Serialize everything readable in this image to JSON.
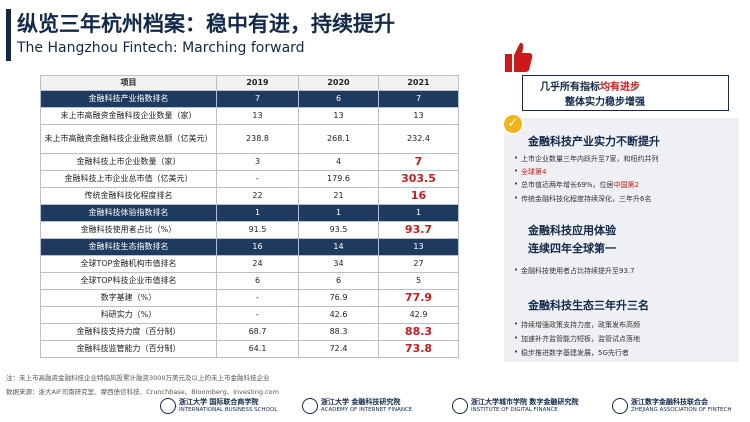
{
  "title": {
    "cn": "纵览三年杭州档案：稳中有进，持续提升",
    "en": "The Hangzhou Fintech: Marching forward"
  },
  "table": {
    "headers": [
      "项目",
      "2019",
      "2020",
      "2021"
    ],
    "rows": [
      {
        "type": "section",
        "cells": [
          "金融科技产业指数排名",
          "7",
          "6",
          "7"
        ]
      },
      {
        "type": "data",
        "cells": [
          "未上市高融资金融科技企业数量（家）",
          "13",
          "13",
          "13"
        ]
      },
      {
        "type": "tall",
        "cells": [
          "未上市高融资金融科技企业融资总额（亿美元）",
          "238.8",
          "268.1",
          "232.4"
        ]
      },
      {
        "type": "data",
        "hl": true,
        "cells": [
          "金融科技上市企业数量（家）",
          "3",
          "4",
          "7"
        ]
      },
      {
        "type": "data",
        "hl": true,
        "cells": [
          "金融科技上市企业总市值（亿美元）",
          "-",
          "179.6",
          "303.5"
        ]
      },
      {
        "type": "data",
        "hl": true,
        "cells": [
          "传统金融科技化程度排名",
          "22",
          "21",
          "16"
        ]
      },
      {
        "type": "section",
        "cells": [
          "金融科技体验指数排名",
          "1",
          "1",
          "1"
        ]
      },
      {
        "type": "data",
        "hl": true,
        "cells": [
          "金融科技使用者占比（%）",
          "91.5",
          "93.5",
          "93.7"
        ]
      },
      {
        "type": "section",
        "cells": [
          "金融科技生态指数排名",
          "16",
          "14",
          "13"
        ]
      },
      {
        "type": "data",
        "cells": [
          "全球TOP金融机构市值排名",
          "24",
          "34",
          "27"
        ]
      },
      {
        "type": "data",
        "cells": [
          "全球TOP科技企业市值排名",
          "6",
          "6",
          "5"
        ]
      },
      {
        "type": "data",
        "hl": true,
        "cells": [
          "数字基建（%）",
          "-",
          "76.9",
          "77.9"
        ]
      },
      {
        "type": "data",
        "cells": [
          "科研实力（%）",
          "-",
          "42.6",
          "42.9"
        ]
      },
      {
        "type": "data",
        "hl": true,
        "cells": [
          "金融科技支持力度（百分制）",
          "68.7",
          "88.3",
          "88.3"
        ]
      },
      {
        "type": "data",
        "hl": true,
        "cells": [
          "金融科技监管能力（百分制）",
          "64.1",
          "72.4",
          "73.8"
        ]
      }
    ]
  },
  "notes": {
    "line1": "注：未上市高融资金融科技企业特指风投累计融资3000万美元及以上的未上市金融科技企业",
    "line2": "数据来源：浙大AIF司南研究室、摩西债信科技、Crunchbase、Bloomberg、Investing.com"
  },
  "tagline": {
    "line1_pre": "几乎所有指标",
    "line1_hl": "均有进步",
    "line2": "整体实力稳步增强"
  },
  "sections": [
    {
      "title": "金融科技产业实力不断提升",
      "bullets": [
        {
          "pre": "上市企业数量三年内跃升至7家，和纽约并列",
          "hl": "",
          "post": ""
        },
        {
          "pre": "",
          "hl": "全球第4",
          "post": ""
        },
        {
          "pre": "总市值近两年增长69%，位居",
          "hl": "中国第2",
          "post": ""
        },
        {
          "pre": "传统金融科技化程度持续深化，三年升6名",
          "hl": "",
          "post": ""
        }
      ]
    },
    {
      "title": "金融科技应用体验",
      "title2": "连续四年全球第一",
      "bullets": [
        {
          "pre": "金融科技使用者占比持续提升至93.7",
          "hl": "",
          "post": ""
        }
      ]
    },
    {
      "title": "金融科技生态三年升三名",
      "bullets": [
        {
          "pre": "持续增强政策支持力度，政策发布高频",
          "hl": "",
          "post": ""
        },
        {
          "pre": "加速补齐监管能力短板，监管试点落地",
          "hl": "",
          "post": ""
        },
        {
          "pre": "稳步推进数字基建发展，5G先行者",
          "hl": "",
          "post": ""
        }
      ]
    }
  ],
  "logos": [
    {
      "main": "浙江大学 国际联合商学院",
      "sub": "INTERNATIONAL BUSINESS SCHOOL"
    },
    {
      "main": "浙江大学 金融科技研究院",
      "sub": "ACADEMY OF INTERNET FINANCE"
    },
    {
      "main": "浙江大学城市学院 数字金融研究院",
      "sub": "INSTITUTE OF DIGITAL FINANCE"
    },
    {
      "main": "浙江数字金融科技联合会",
      "sub": "ZHEJIANG ASSOCIATION OF FINTECH"
    }
  ],
  "colors": {
    "navy": "#12294a",
    "header_row": "#1f3a5f",
    "highlight": "#d01818",
    "badge": "#f2b418"
  },
  "icons": [
    "thumbs-up-icon",
    "check-badge-icon"
  ]
}
